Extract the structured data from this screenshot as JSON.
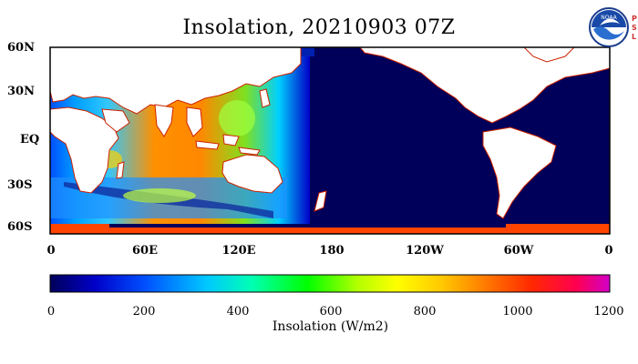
{
  "title": "Insolation, 20210903 07Z",
  "lat_labels": [
    "60N",
    "30N",
    "EQ",
    "30S",
    "60S"
  ],
  "lon_labels": [
    "0",
    "60E",
    "120E",
    "180",
    "120W",
    "60W",
    "0"
  ],
  "colorbar": {
    "tick_labels": [
      "0",
      "200",
      "400",
      "600",
      "800",
      "1000",
      "1200"
    ],
    "title": "Insolation (W/m2)",
    "range": [
      0,
      1200
    ],
    "colors": [
      "#00005a",
      "#0000c8",
      "#0050ff",
      "#00c8ff",
      "#00ffb4",
      "#00ff00",
      "#b4ff00",
      "#ffff00",
      "#ffc800",
      "#ff7800",
      "#ff2800",
      "#ff0050",
      "#d200c8"
    ]
  },
  "logo": {
    "name": "noaa-logo",
    "small_text": "NOAA",
    "side_text": [
      "P",
      "S",
      "L"
    ]
  },
  "colors": {
    "land": "#ffffff",
    "night_ocean": "#00005a",
    "coast": "#cc2200"
  }
}
